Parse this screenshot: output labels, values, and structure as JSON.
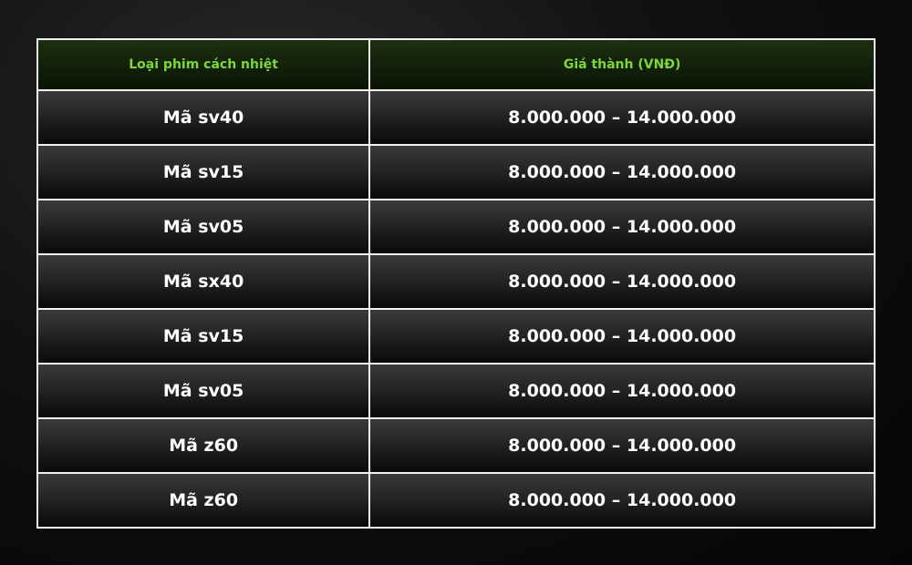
{
  "colors": {
    "header_text": "#7fd63a",
    "header_bg": "#1c3010",
    "cell_text": "#ffffff",
    "border": "#f2f2f2"
  },
  "table": {
    "headers": [
      "Loại phim cách nhiệt",
      "Giá thành (VNĐ)"
    ],
    "rows": [
      [
        "Mã sv40",
        "8.000.000 – 14.000.000"
      ],
      [
        "Mã sv15",
        "8.000.000 – 14.000.000"
      ],
      [
        "Mã sv05",
        "8.000.000 – 14.000.000"
      ],
      [
        "Mã sx40",
        "8.000.000 – 14.000.000"
      ],
      [
        "Mã sv15",
        "8.000.000 – 14.000.000"
      ],
      [
        "Mã sv05",
        "8.000.000 – 14.000.000"
      ],
      [
        "Mã z60",
        "8.000.000 – 14.000.000"
      ],
      [
        "Mã z60",
        "8.000.000 – 14.000.000"
      ]
    ]
  }
}
